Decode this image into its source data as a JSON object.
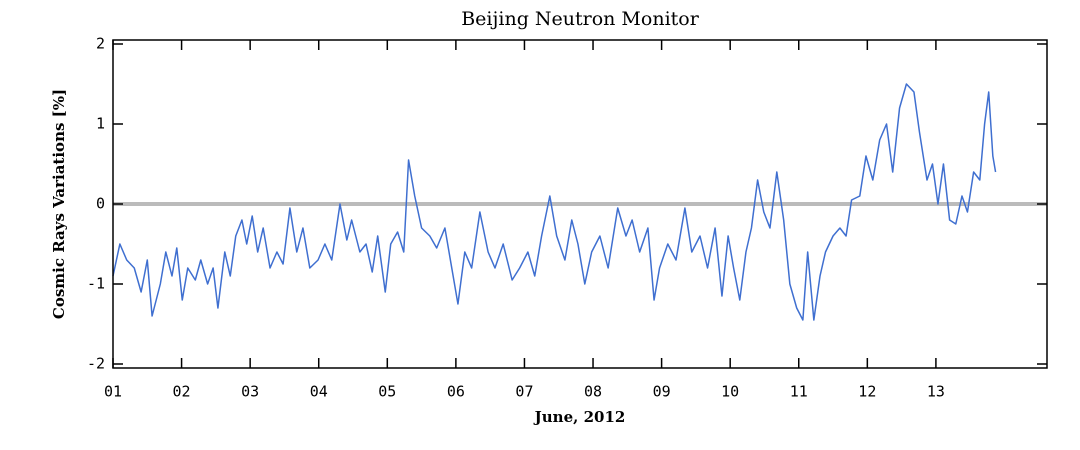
{
  "chart_data": {
    "type": "line",
    "title": "Beijing Neutron Monitor",
    "xlabel": "June, 2012",
    "ylabel": "Cosmic Rays Variations [%]",
    "xlim": [
      1,
      14.62
    ],
    "ylim": [
      -2.05,
      2.05
    ],
    "xticks": [
      {
        "value": 1,
        "label": "01"
      },
      {
        "value": 2,
        "label": "02"
      },
      {
        "value": 3,
        "label": "03"
      },
      {
        "value": 4,
        "label": "04"
      },
      {
        "value": 5,
        "label": "05"
      },
      {
        "value": 6,
        "label": "06"
      },
      {
        "value": 7,
        "label": "07"
      },
      {
        "value": 8,
        "label": "08"
      },
      {
        "value": 9,
        "label": "09"
      },
      {
        "value": 10,
        "label": "10"
      },
      {
        "value": 11,
        "label": "11"
      },
      {
        "value": 12,
        "label": "12"
      },
      {
        "value": 13,
        "label": "13"
      }
    ],
    "yticks": [
      -2,
      -1,
      0,
      1,
      2
    ],
    "reference_line": {
      "value": 0,
      "color": "#bbbbbb"
    },
    "x": [
      1.0,
      1.1,
      1.2,
      1.31,
      1.41,
      1.5,
      1.57,
      1.69,
      1.77,
      1.86,
      1.93,
      2.01,
      2.09,
      2.2,
      2.28,
      2.38,
      2.46,
      2.53,
      2.63,
      2.71,
      2.79,
      2.88,
      2.95,
      3.03,
      3.11,
      3.19,
      3.29,
      3.39,
      3.48,
      3.58,
      3.68,
      3.77,
      3.87,
      3.99,
      4.09,
      4.19,
      4.31,
      4.41,
      4.48,
      4.6,
      4.69,
      4.78,
      4.86,
      4.97,
      5.05,
      5.15,
      5.24,
      5.31,
      5.4,
      5.5,
      5.62,
      5.72,
      5.84,
      5.94,
      6.03,
      6.13,
      6.23,
      6.35,
      6.47,
      6.57,
      6.69,
      6.82,
      6.93,
      7.05,
      7.15,
      7.25,
      7.37,
      7.47,
      7.59,
      7.69,
      7.78,
      7.88,
      7.98,
      8.1,
      8.22,
      8.36,
      8.48,
      8.57,
      8.68,
      8.8,
      8.89,
      8.97,
      9.09,
      9.21,
      9.34,
      9.44,
      9.56,
      9.67,
      9.78,
      9.88,
      9.97,
      10.05,
      10.14,
      10.23,
      10.31,
      10.4,
      10.49,
      10.58,
      10.68,
      10.78,
      10.87,
      10.97,
      11.06,
      11.13,
      11.22,
      11.31,
      11.39,
      11.5,
      11.6,
      11.69,
      11.77,
      11.89,
      11.98,
      12.08,
      12.18,
      12.28,
      12.37,
      12.47,
      12.57,
      12.68,
      12.76,
      12.87,
      12.95,
      13.03,
      13.11,
      13.2,
      13.29,
      13.38,
      13.46,
      13.55,
      13.64,
      13.71,
      13.77,
      13.83,
      13.87
    ],
    "series": [
      {
        "name": "Cosmic Rays Variations",
        "color": "#3f6fd0",
        "values": [
          -0.9,
          -0.5,
          -0.7,
          -0.8,
          -1.1,
          -0.7,
          -1.4,
          -1.0,
          -0.6,
          -0.9,
          -0.55,
          -1.2,
          -0.8,
          -0.95,
          -0.7,
          -1.0,
          -0.8,
          -1.3,
          -0.6,
          -0.9,
          -0.4,
          -0.2,
          -0.5,
          -0.15,
          -0.6,
          -0.3,
          -0.8,
          -0.6,
          -0.75,
          -0.05,
          -0.6,
          -0.3,
          -0.8,
          -0.7,
          -0.5,
          -0.7,
          0.0,
          -0.45,
          -0.2,
          -0.6,
          -0.5,
          -0.85,
          -0.4,
          -1.1,
          -0.5,
          -0.35,
          -0.6,
          0.55,
          0.1,
          -0.3,
          -0.4,
          -0.55,
          -0.3,
          -0.8,
          -1.25,
          -0.6,
          -0.8,
          -0.1,
          -0.6,
          -0.8,
          -0.5,
          -0.95,
          -0.8,
          -0.6,
          -0.9,
          -0.4,
          0.1,
          -0.4,
          -0.7,
          -0.2,
          -0.5,
          -1.0,
          -0.6,
          -0.4,
          -0.8,
          -0.05,
          -0.4,
          -0.2,
          -0.6,
          -0.3,
          -1.2,
          -0.8,
          -0.5,
          -0.7,
          -0.05,
          -0.6,
          -0.4,
          -0.8,
          -0.3,
          -1.15,
          -0.4,
          -0.8,
          -1.2,
          -0.6,
          -0.3,
          0.3,
          -0.1,
          -0.3,
          0.4,
          -0.2,
          -1.0,
          -1.3,
          -1.45,
          -0.6,
          -1.45,
          -0.9,
          -0.6,
          -0.4,
          -0.3,
          -0.4,
          0.05,
          0.1,
          0.6,
          0.3,
          0.8,
          1.0,
          0.4,
          1.2,
          1.5,
          1.4,
          0.9,
          0.3,
          0.5,
          0.0,
          0.5,
          -0.2,
          -0.25,
          0.1,
          -0.1,
          0.4,
          0.3,
          1.0,
          1.4,
          0.6,
          0.4
        ]
      }
    ]
  }
}
